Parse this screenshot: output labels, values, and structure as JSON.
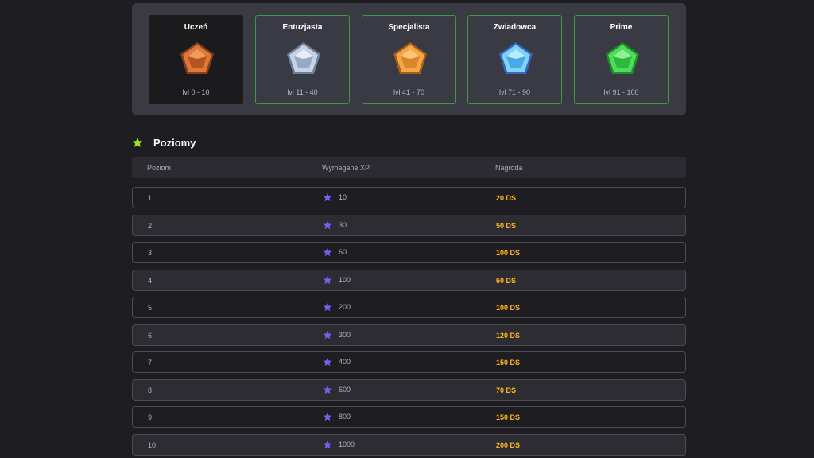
{
  "colors": {
    "panel": "#3a3a44",
    "rank_border": "#3c9a3a",
    "reward": "#ffb61e",
    "xp_star": "#7b5cf0",
    "heading_star": "#9fe02a"
  },
  "ranks": [
    {
      "title": "Uczeń",
      "range": "lvl 0 - 10",
      "gem_icon": "bronze-gem-icon",
      "active": true
    },
    {
      "title": "Entuzjasta",
      "range": "lvl 11 - 40",
      "gem_icon": "silver-gem-icon",
      "active": false
    },
    {
      "title": "Specjalista",
      "range": "lvl 41 - 70",
      "gem_icon": "gold-gem-icon",
      "active": false
    },
    {
      "title": "Zwiadowca",
      "range": "lvl 71 - 90",
      "gem_icon": "diamond-gem-icon",
      "active": false
    },
    {
      "title": "Prime",
      "range": "lvl 91 - 100",
      "gem_icon": "emerald-gem-icon",
      "active": false
    }
  ],
  "levels_section": {
    "title": "Poziomy",
    "icon": "star-icon",
    "columns": {
      "level": "Poziom",
      "xp": "Wymagane XP",
      "reward": "Nagroda"
    },
    "rows": [
      {
        "level": "1",
        "xp": "10",
        "reward": "20 DS"
      },
      {
        "level": "2",
        "xp": "30",
        "reward": "50 DS"
      },
      {
        "level": "3",
        "xp": "60",
        "reward": "100 DS"
      },
      {
        "level": "4",
        "xp": "100",
        "reward": "50 DS"
      },
      {
        "level": "5",
        "xp": "200",
        "reward": "100 DS"
      },
      {
        "level": "6",
        "xp": "300",
        "reward": "120 DS"
      },
      {
        "level": "7",
        "xp": "400",
        "reward": "150 DS"
      },
      {
        "level": "8",
        "xp": "600",
        "reward": "70 DS"
      },
      {
        "level": "9",
        "xp": "800",
        "reward": "150 DS"
      },
      {
        "level": "10",
        "xp": "1000",
        "reward": "200 DS"
      }
    ]
  }
}
